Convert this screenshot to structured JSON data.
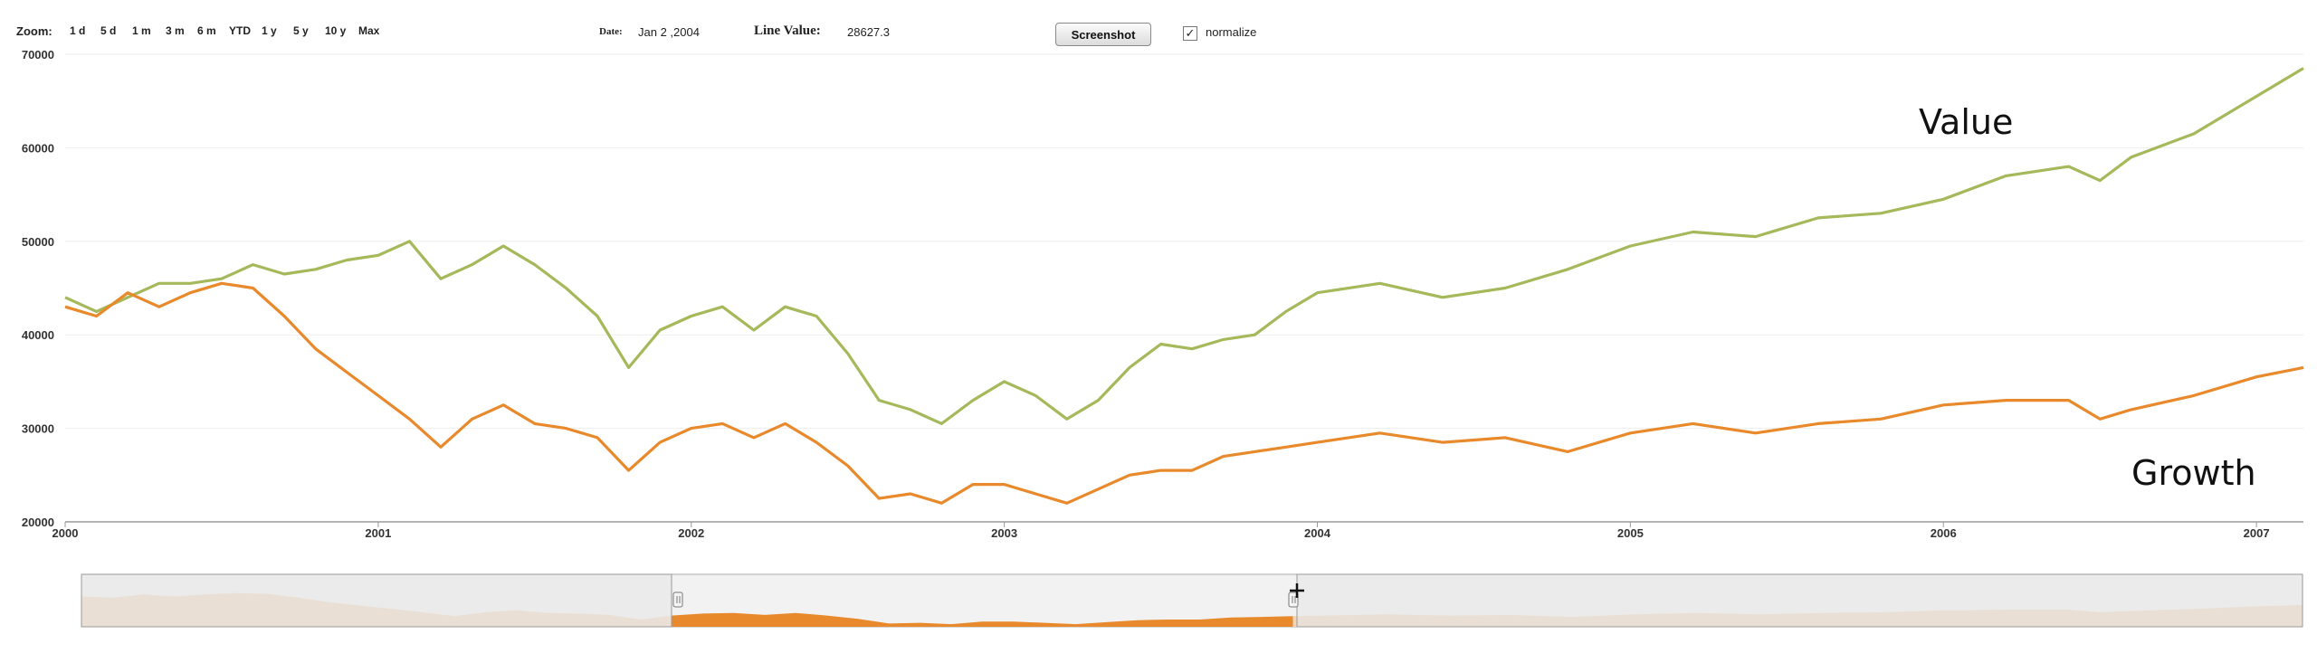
{
  "toolbar": {
    "zoom_label": "Zoom:",
    "zoom_options": [
      "1 d",
      "5 d",
      "1 m",
      "3 m",
      "6 m",
      "YTD",
      "1 y",
      "5 y",
      "10 y",
      "Max"
    ],
    "date_label": "Date:",
    "date_value": "Jan 2 ,2004",
    "line_value_label": "Line Value:",
    "line_value": "28627.3",
    "screenshot_label": "Screenshot",
    "normalize_label": "normalize",
    "normalize_checked": true
  },
  "chart_data": {
    "type": "line",
    "ylim": [
      20000,
      70000
    ],
    "xlim": [
      2000.0,
      2007.15
    ],
    "y_ticks": [
      "70000",
      "60000",
      "50000",
      "40000",
      "30000",
      "20000"
    ],
    "x_ticks": [
      "2000",
      "2001",
      "2002",
      "2003",
      "2004",
      "2005",
      "2006",
      "2007"
    ],
    "grid": true,
    "legend": "inline labels",
    "series": [
      {
        "name": "Value",
        "color": "#a5b85a",
        "x": [
          2000.0,
          2000.1,
          2000.2,
          2000.3,
          2000.4,
          2000.5,
          2000.6,
          2000.7,
          2000.8,
          2000.9,
          2001.0,
          2001.1,
          2001.2,
          2001.3,
          2001.4,
          2001.5,
          2001.6,
          2001.7,
          2001.8,
          2001.9,
          2002.0,
          2002.1,
          2002.2,
          2002.3,
          2002.4,
          2002.5,
          2002.6,
          2002.7,
          2002.8,
          2002.9,
          2003.0,
          2003.1,
          2003.2,
          2003.3,
          2003.4,
          2003.5,
          2003.6,
          2003.7,
          2003.8,
          2003.9,
          2004.0,
          2004.2,
          2004.4,
          2004.6,
          2004.8,
          2005.0,
          2005.2,
          2005.4,
          2005.6,
          2005.8,
          2006.0,
          2006.2,
          2006.4,
          2006.5,
          2006.6,
          2006.8,
          2007.0,
          2007.15
        ],
        "y": [
          44000,
          42500,
          44000,
          45500,
          45500,
          46000,
          47500,
          46500,
          47000,
          48000,
          48500,
          50000,
          46000,
          47500,
          49500,
          47500,
          45000,
          42000,
          36500,
          40500,
          42000,
          43000,
          40500,
          43000,
          42000,
          38000,
          33000,
          32000,
          30500,
          33000,
          35000,
          33500,
          31000,
          33000,
          36500,
          39000,
          38500,
          39500,
          40000,
          42500,
          44500,
          45500,
          44000,
          45000,
          47000,
          49500,
          51000,
          50500,
          52500,
          53000,
          54500,
          57000,
          58000,
          56500,
          59000,
          61500,
          65500,
          68500
        ]
      },
      {
        "name": "Growth",
        "color": "#e8892b",
        "x": [
          2000.0,
          2000.1,
          2000.2,
          2000.3,
          2000.4,
          2000.5,
          2000.6,
          2000.7,
          2000.8,
          2000.9,
          2001.0,
          2001.1,
          2001.2,
          2001.3,
          2001.4,
          2001.5,
          2001.6,
          2001.7,
          2001.8,
          2001.9,
          2002.0,
          2002.1,
          2002.2,
          2002.3,
          2002.4,
          2002.5,
          2002.6,
          2002.7,
          2002.8,
          2002.9,
          2003.0,
          2003.1,
          2003.2,
          2003.3,
          2003.4,
          2003.5,
          2003.6,
          2003.7,
          2003.8,
          2003.9,
          2004.0,
          2004.2,
          2004.4,
          2004.6,
          2004.8,
          2005.0,
          2005.2,
          2005.4,
          2005.6,
          2005.8,
          2006.0,
          2006.2,
          2006.4,
          2006.5,
          2006.6,
          2006.8,
          2007.0,
          2007.15
        ],
        "y": [
          43000,
          42000,
          44500,
          43000,
          44500,
          45500,
          45000,
          42000,
          38500,
          36000,
          33500,
          31000,
          28000,
          31000,
          32500,
          30500,
          30000,
          29000,
          25500,
          28500,
          30000,
          30500,
          29000,
          30500,
          28500,
          26000,
          22500,
          23000,
          22000,
          24000,
          24000,
          23000,
          22000,
          23500,
          25000,
          25500,
          25500,
          27000,
          27500,
          28000,
          28500,
          29500,
          28500,
          29000,
          27500,
          29500,
          30500,
          29500,
          30500,
          31000,
          32500,
          33000,
          33000,
          31000,
          32000,
          33500,
          35500,
          36500
        ]
      }
    ]
  }
}
